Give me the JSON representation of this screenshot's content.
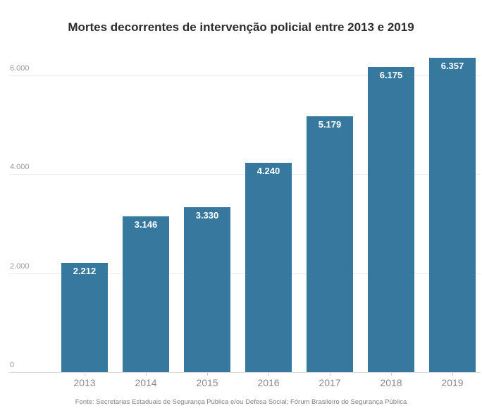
{
  "chart_data": {
    "type": "bar",
    "title": "Mortes decorrentes de intervenção policial entre 2013 e 2019",
    "source_note": "Fonte: Secretarias Estaduais de Segurança Pública e/ou Defesa Social; Fórum Brasileiro de Segurança Pública",
    "categories": [
      "2013",
      "2014",
      "2015",
      "2016",
      "2017",
      "2018",
      "2019"
    ],
    "values": [
      2212,
      3146,
      3330,
      4240,
      5179,
      6175,
      6357
    ],
    "value_labels": [
      "2.212",
      "3.146",
      "3.330",
      "4.240",
      "5.179",
      "6.175",
      "6.357"
    ],
    "y_ticks": [
      0,
      2000,
      4000,
      6000
    ],
    "y_tick_labels": [
      "0",
      "2.000",
      "4.000",
      "6.000"
    ],
    "ylim": [
      0,
      6470
    ],
    "xlabel": "",
    "ylabel": "",
    "grid": true,
    "legend": false,
    "bar_color": "#36789e",
    "bar_label_color": "#ffffff",
    "title_color": "#2d2d2d",
    "axis_label_color": "#9b9b9b"
  }
}
